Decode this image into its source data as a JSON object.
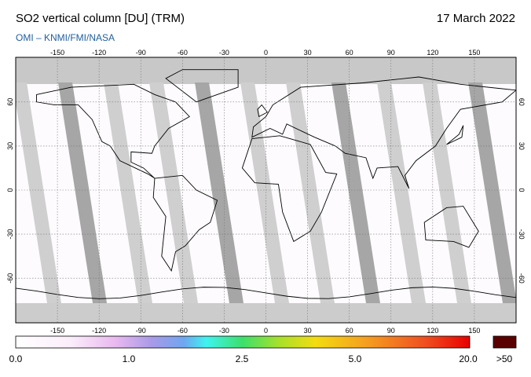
{
  "header": {
    "title": "SO2 vertical column [DU] (TRM)",
    "date": "17 March 2022",
    "subtitle": "OMI  –  KNMI/FMI/NASA"
  },
  "map": {
    "lon_ticks": [
      -150,
      -120,
      -90,
      -60,
      -30,
      0,
      30,
      60,
      90,
      120,
      150
    ],
    "lat_ticks": [
      -60,
      -30,
      0,
      30,
      60
    ]
  },
  "colorbar": {
    "labels": [
      "0.0",
      "1.0",
      "2.5",
      "5.0",
      "20.0"
    ],
    "overflow_label": ">50"
  }
}
